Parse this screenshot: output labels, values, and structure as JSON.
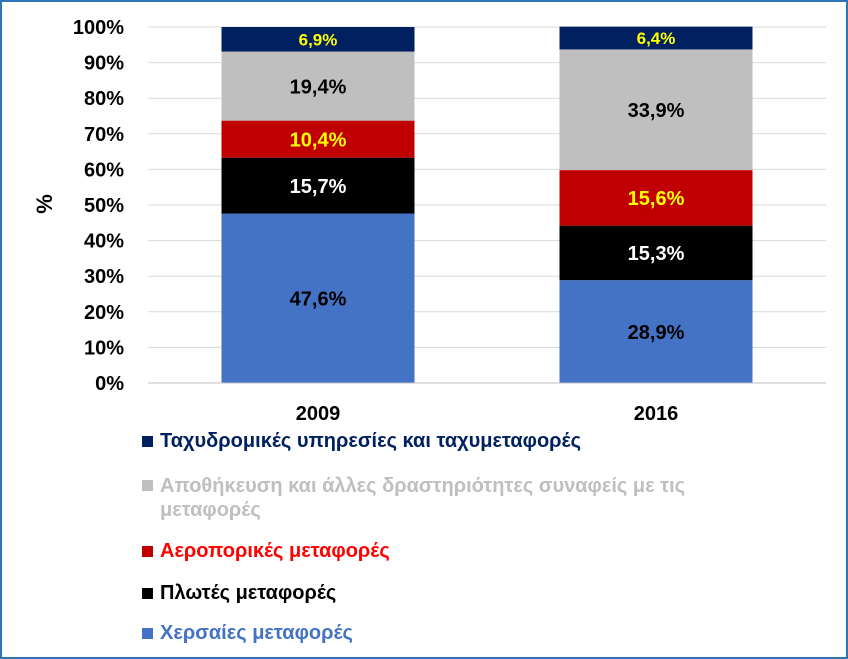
{
  "chart_data": {
    "type": "bar",
    "stacked": true,
    "percent": true,
    "categories": [
      "2009",
      "2016"
    ],
    "ylabel": "%",
    "ylim": [
      0,
      100
    ],
    "yticks": [
      "0%",
      "10%",
      "20%",
      "30%",
      "40%",
      "50%",
      "60%",
      "70%",
      "80%",
      "90%",
      "100%"
    ],
    "grid": true,
    "legend_position": "bottom",
    "series": [
      {
        "name": "Χερσαίες μεταφορές",
        "values": [
          47.6,
          28.9
        ],
        "labels": [
          "47,6%",
          "28,9%"
        ],
        "color": "#4472c4",
        "label_color": "#000000",
        "legend_color": "#4472c4"
      },
      {
        "name": "Πλωτές μεταφορές",
        "values": [
          15.7,
          15.3
        ],
        "labels": [
          "15,7%",
          "15,3%"
        ],
        "color": "#000000",
        "label_color": "#ffffff",
        "legend_color": "#000000"
      },
      {
        "name": "Αεροπορικές μεταφορές",
        "values": [
          10.4,
          15.6
        ],
        "labels": [
          "10,4%",
          "15,6%"
        ],
        "color": "#c00000",
        "label_color": "#ffff00",
        "legend_color": "#ff0000"
      },
      {
        "name": "Αποθήκευση και άλλες δραστηριότητες συναφείς με τις μεταφορές",
        "values": [
          19.4,
          33.9
        ],
        "labels": [
          "19,4%",
          "33,9%"
        ],
        "color": "#bfbfbf",
        "label_color": "#000000",
        "legend_color": "#bfbfbf"
      },
      {
        "name": "Ταχυδρομικές υπηρεσίες και ταχυμεταφορές",
        "values": [
          6.9,
          6.4
        ],
        "labels": [
          "6,9%",
          "6,4%"
        ],
        "color": "#002060",
        "label_color": "#ffff00",
        "legend_color": "#002060"
      }
    ]
  }
}
